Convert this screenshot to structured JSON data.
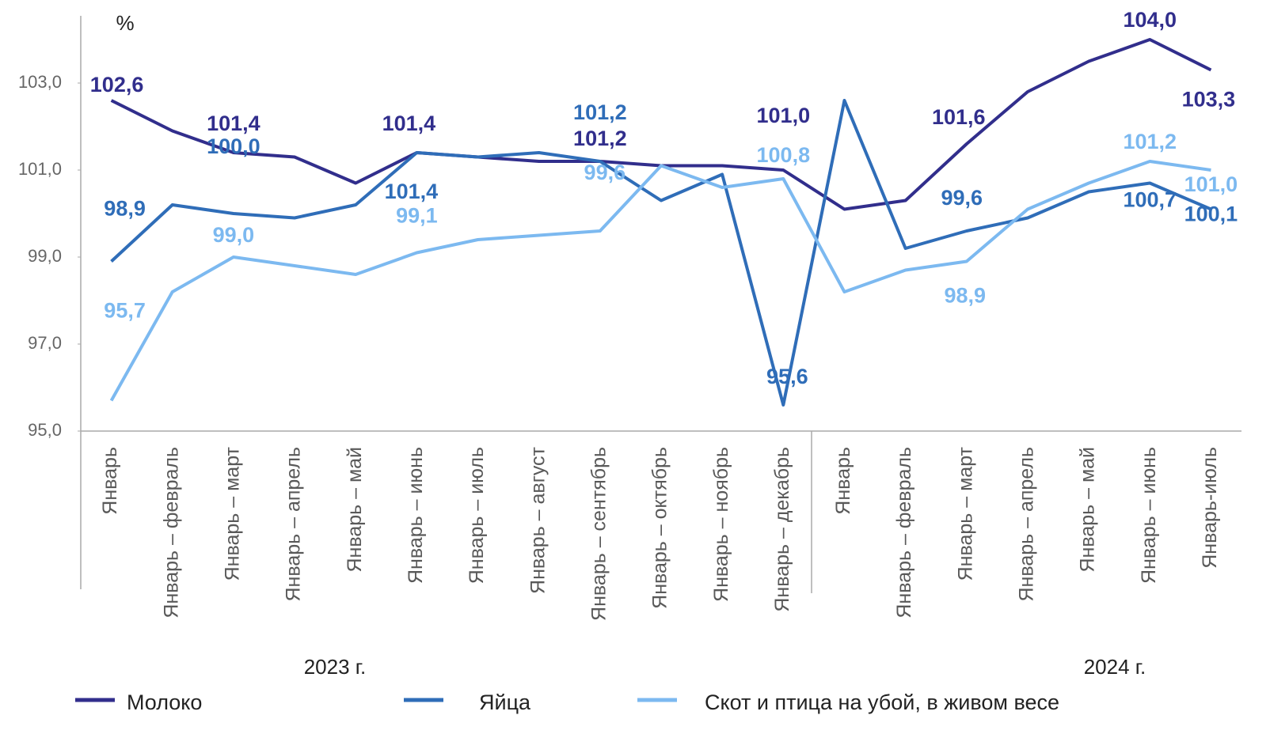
{
  "chart_data": {
    "type": "line",
    "unit": "%",
    "year_labels": [
      "2023 г.",
      "2024 г."
    ],
    "categories": [
      "Январь",
      "Январь – февраль",
      "Январь – март",
      "Январь – апрель",
      "Январь – май",
      "Январь – июнь",
      "Январь – июль",
      "Январь – август",
      "Январь – сентябрь",
      "Январь – октябрь",
      "Январь – ноябрь",
      "Январь – декабрь",
      "Январь",
      "Январь – февраль",
      "Январь – март",
      "Январь – апрель",
      "Январь – май",
      "Январь – июнь",
      "Январь-июль"
    ],
    "series": [
      {
        "name": "Молоко",
        "color": "#312e8c",
        "values": [
          102.6,
          101.9,
          101.4,
          101.3,
          100.7,
          101.4,
          101.3,
          101.2,
          101.2,
          101.1,
          101.1,
          101.0,
          100.1,
          100.3,
          101.6,
          102.8,
          103.5,
          104.0,
          103.3
        ],
        "value_labels": [
          "102,6",
          null,
          "101,4",
          null,
          null,
          "101,4",
          null,
          null,
          "101,2",
          null,
          null,
          "101,0",
          null,
          null,
          "101,6",
          null,
          null,
          "104,0",
          "103,3"
        ]
      },
      {
        "name": "Яйца",
        "color": "#2f6db8",
        "values": [
          98.9,
          100.2,
          100.0,
          99.9,
          100.2,
          101.4,
          101.3,
          101.4,
          101.2,
          100.3,
          100.9,
          95.6,
          102.6,
          99.2,
          99.6,
          99.9,
          100.5,
          100.7,
          100.1
        ],
        "value_labels": [
          "98,9",
          null,
          "100,0",
          null,
          null,
          "101,4",
          null,
          null,
          "101,2",
          null,
          null,
          "95,6",
          null,
          null,
          "99,6",
          null,
          null,
          "100,7",
          "100,1"
        ]
      },
      {
        "name": "Скот и птица на убой, в живом весе",
        "color": "#7cb9f0",
        "values": [
          95.7,
          98.2,
          99.0,
          98.8,
          98.6,
          99.1,
          99.4,
          99.5,
          99.6,
          101.1,
          100.6,
          100.8,
          98.2,
          98.7,
          98.9,
          100.1,
          100.7,
          101.2,
          101.0
        ],
        "value_labels": [
          "95,7",
          null,
          "99,0",
          null,
          null,
          "99,1",
          null,
          null,
          "99,6",
          null,
          null,
          "100,8",
          null,
          null,
          "98,9",
          null,
          null,
          "101,2",
          "101,0"
        ]
      }
    ],
    "ylim": [
      95,
      104.5
    ],
    "yticks": [
      {
        "value": 95,
        "label": "95,0"
      },
      {
        "value": 97,
        "label": "97,0"
      },
      {
        "value": 99,
        "label": "99,0"
      },
      {
        "value": 101,
        "label": "101,0"
      },
      {
        "value": 103,
        "label": "103,0"
      }
    ],
    "grid": false,
    "legend": "bottom"
  }
}
